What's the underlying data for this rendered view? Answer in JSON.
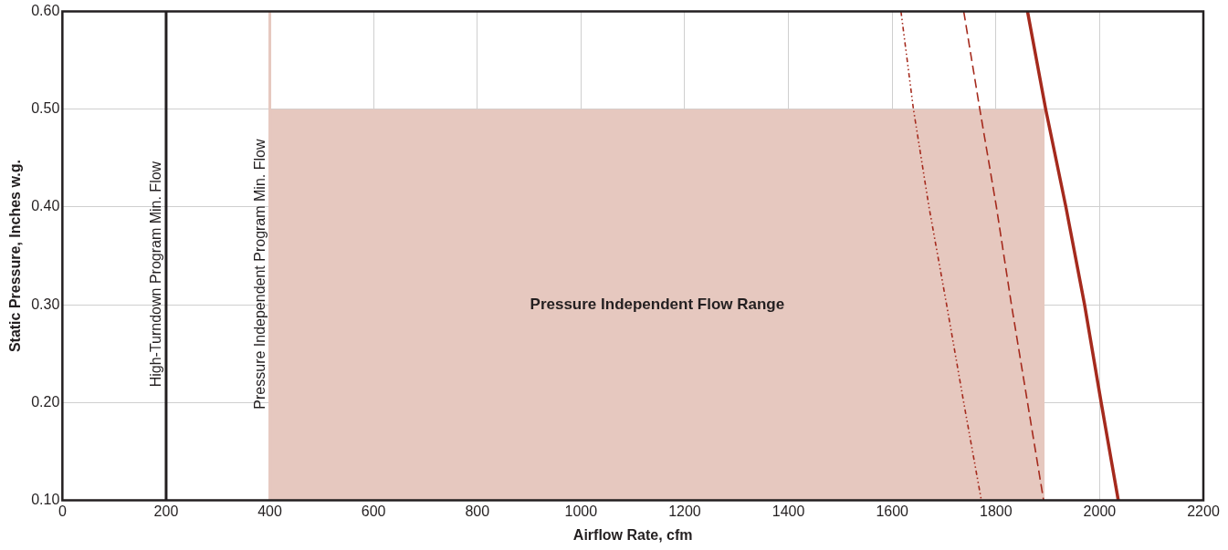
{
  "chart_data": {
    "type": "line",
    "xlabel": "Airflow Rate, cfm",
    "ylabel": "Static Pressure, Inches w.g.",
    "xlim": [
      0,
      2200
    ],
    "xticks": [
      0,
      200,
      400,
      600,
      800,
      1000,
      1200,
      1400,
      1600,
      1800,
      2000,
      2200
    ],
    "ylim": [
      0.1,
      0.6
    ],
    "yticks": [
      {
        "value": 0.1,
        "label": "0.10"
      },
      {
        "value": 0.2,
        "label": "0.20"
      },
      {
        "value": 0.3,
        "label": "0.30"
      },
      {
        "value": 0.4,
        "label": "0.40"
      },
      {
        "value": 0.5,
        "label": "0.50"
      },
      {
        "value": 0.6,
        "label": "0.60"
      }
    ],
    "grid": true,
    "legend": false,
    "marker": "none",
    "series": [
      {
        "type": "area",
        "color": "#e6c8bf",
        "x": [
          400,
          1894
        ],
        "values": [
          0.5,
          0.5
        ]
      },
      {
        "color": "#a52a1d",
        "line_style": "dotted",
        "x": [
          1617,
          1641,
          1671,
          1705,
          1738,
          1772
        ],
        "values": [
          0.6,
          0.5,
          0.4,
          0.3,
          0.2,
          0.1
        ]
      },
      {
        "color": "#a52a1d",
        "line_style": "dashed",
        "x": [
          1738,
          1769,
          1801,
          1830,
          1861,
          1892
        ],
        "values": [
          0.6,
          0.5,
          0.4,
          0.3,
          0.2,
          0.1
        ]
      },
      {
        "color": "#a52a1d",
        "line_style": "solid",
        "x": [
          1861,
          1896,
          1935,
          1971,
          2003,
          2036
        ],
        "values": [
          0.6,
          0.5,
          0.4,
          0.3,
          0.2,
          0.1
        ]
      }
    ],
    "ref_lines": [
      {
        "axis": "x",
        "value": 200,
        "label": "High-Turndown Program Min. Flow",
        "color": "#231f20"
      },
      {
        "axis": "x",
        "value": 400,
        "label": "Pressure Independent Program Min. Flow",
        "color": "#e6c8bf"
      }
    ],
    "annotations": [
      "Pressure Independent Flow Range"
    ]
  }
}
